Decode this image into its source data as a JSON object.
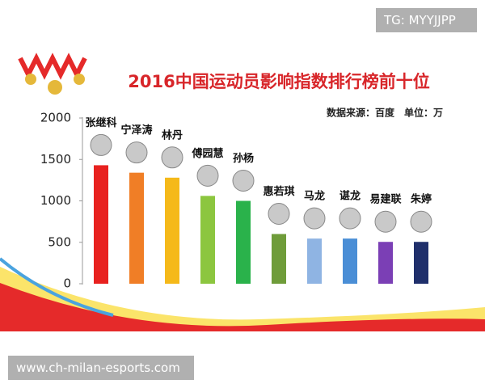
{
  "watermark_top": "TG: MYYJJPP",
  "watermark_bottom": "www.ch-milan-esports.com",
  "chart_data": {
    "type": "bar",
    "title": "2016中国运动员影响指数排行榜前十位",
    "note": "数据来源：百度　单位：万",
    "categories": [
      "张继科",
      "宁泽涛",
      "林丹",
      "傅园慧",
      "孙杨",
      "惠若琪",
      "马龙",
      "谌龙",
      "易建联",
      "朱婷"
    ],
    "values": [
      1430,
      1340,
      1280,
      1060,
      1000,
      600,
      545,
      545,
      505,
      505
    ],
    "colors": [
      "#e8211f",
      "#f07e26",
      "#f5b91a",
      "#8cc63f",
      "#2ab24b",
      "#6f9c3a",
      "#8fb4e3",
      "#4a8ed6",
      "#7b3fb5",
      "#1f2f6b"
    ],
    "ylim": [
      0,
      2000
    ],
    "yticks": [
      0,
      500,
      1000,
      1500,
      2000
    ]
  }
}
